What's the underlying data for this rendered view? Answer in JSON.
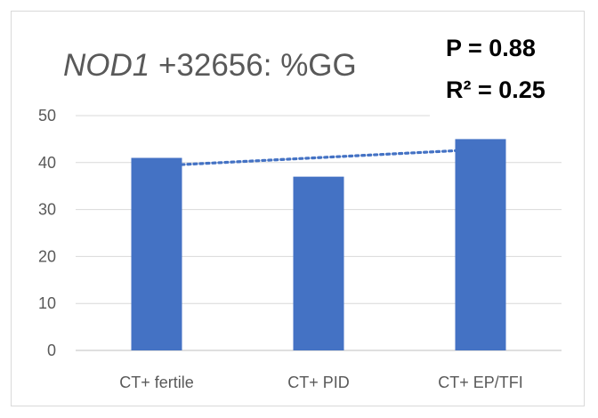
{
  "chart_data": {
    "type": "bar",
    "title_gene": "NOD1",
    "title_rest": " +32656: %GG",
    "stats": {
      "p_label": "P = 0.88",
      "r2_label": "R² = 0.25"
    },
    "categories": [
      "CT+ fertile",
      "CT+ PID",
      "CT+ EP/TFI"
    ],
    "values": [
      41,
      37,
      45
    ],
    "ylim": [
      0,
      50
    ],
    "yticks": [
      0,
      10,
      20,
      30,
      40,
      50
    ],
    "grid": true,
    "bar_color": "#4472c4",
    "trendline": {
      "type": "linear",
      "style": "dotted",
      "color": "#4472c4",
      "start": 39.3,
      "end": 42.8
    }
  }
}
